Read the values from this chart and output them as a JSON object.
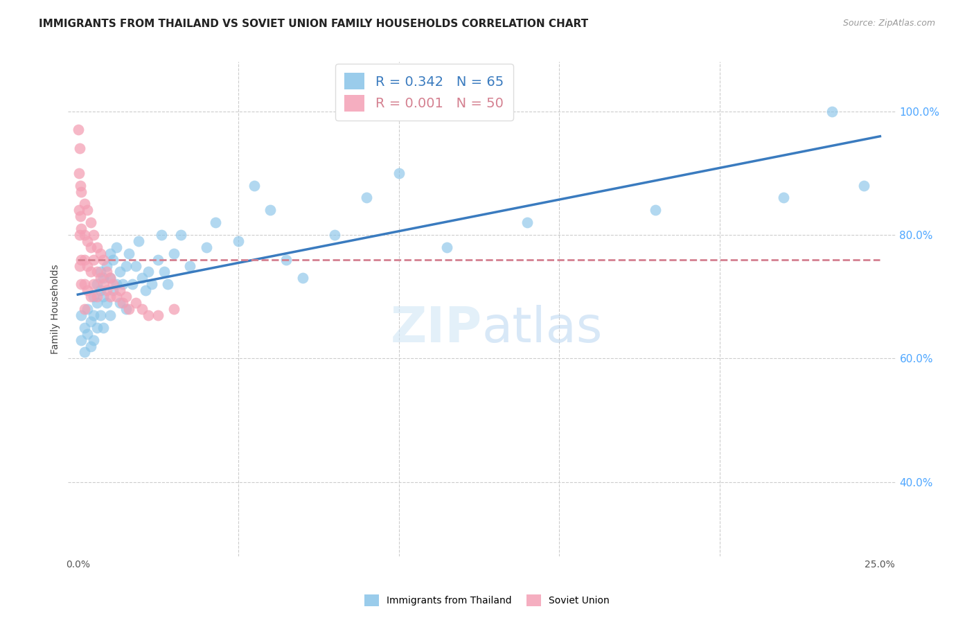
{
  "title": "IMMIGRANTS FROM THAILAND VS SOVIET UNION FAMILY HOUSEHOLDS CORRELATION CHART",
  "source": "Source: ZipAtlas.com",
  "ylabel": "Family Households",
  "bottom_legend": [
    "Immigrants from Thailand",
    "Soviet Union"
  ],
  "watermark": "ZIPatlas",
  "background_color": "#ffffff",
  "grid_color": "#cccccc",
  "blue_color": "#89c4e8",
  "pink_color": "#f4a0b5",
  "blue_line_color": "#3a7bbf",
  "pink_line_color": "#d48090",
  "right_axis_color": "#4da6ff",
  "legend_blue_label": "R = 0.342   N = 65",
  "legend_pink_label": "R = 0.001   N = 50",
  "thailand_x": [
    0.001,
    0.001,
    0.002,
    0.002,
    0.003,
    0.003,
    0.004,
    0.004,
    0.005,
    0.005,
    0.005,
    0.006,
    0.006,
    0.006,
    0.007,
    0.007,
    0.007,
    0.008,
    0.008,
    0.008,
    0.009,
    0.009,
    0.01,
    0.01,
    0.01,
    0.011,
    0.011,
    0.012,
    0.012,
    0.013,
    0.013,
    0.014,
    0.015,
    0.015,
    0.016,
    0.017,
    0.018,
    0.019,
    0.02,
    0.021,
    0.022,
    0.023,
    0.025,
    0.026,
    0.027,
    0.028,
    0.03,
    0.032,
    0.035,
    0.04,
    0.043,
    0.05,
    0.055,
    0.06,
    0.065,
    0.07,
    0.08,
    0.09,
    0.1,
    0.115,
    0.14,
    0.18,
    0.22,
    0.235,
    0.245
  ],
  "thailand_y": [
    0.67,
    0.63,
    0.65,
    0.61,
    0.68,
    0.64,
    0.66,
    0.62,
    0.7,
    0.67,
    0.63,
    0.72,
    0.69,
    0.65,
    0.74,
    0.71,
    0.67,
    0.73,
    0.7,
    0.65,
    0.75,
    0.69,
    0.77,
    0.73,
    0.67,
    0.76,
    0.71,
    0.78,
    0.72,
    0.74,
    0.69,
    0.72,
    0.75,
    0.68,
    0.77,
    0.72,
    0.75,
    0.79,
    0.73,
    0.71,
    0.74,
    0.72,
    0.76,
    0.8,
    0.74,
    0.72,
    0.77,
    0.8,
    0.75,
    0.78,
    0.82,
    0.79,
    0.88,
    0.84,
    0.76,
    0.73,
    0.8,
    0.86,
    0.9,
    0.78,
    0.82,
    0.84,
    0.86,
    1.0,
    0.88
  ],
  "soviet_x": [
    0.0002,
    0.0003,
    0.0004,
    0.0005,
    0.0005,
    0.0006,
    0.0007,
    0.0008,
    0.001,
    0.001,
    0.001,
    0.001,
    0.002,
    0.002,
    0.002,
    0.002,
    0.002,
    0.003,
    0.003,
    0.003,
    0.003,
    0.004,
    0.004,
    0.004,
    0.004,
    0.005,
    0.005,
    0.005,
    0.006,
    0.006,
    0.006,
    0.007,
    0.007,
    0.008,
    0.008,
    0.009,
    0.009,
    0.01,
    0.01,
    0.011,
    0.012,
    0.013,
    0.014,
    0.015,
    0.016,
    0.018,
    0.02,
    0.022,
    0.025,
    0.03
  ],
  "soviet_y": [
    0.97,
    0.9,
    0.84,
    0.94,
    0.8,
    0.75,
    0.88,
    0.83,
    0.87,
    0.81,
    0.76,
    0.72,
    0.85,
    0.8,
    0.76,
    0.72,
    0.68,
    0.84,
    0.79,
    0.75,
    0.71,
    0.82,
    0.78,
    0.74,
    0.7,
    0.8,
    0.76,
    0.72,
    0.78,
    0.74,
    0.7,
    0.77,
    0.73,
    0.76,
    0.72,
    0.74,
    0.71,
    0.73,
    0.7,
    0.72,
    0.7,
    0.71,
    0.69,
    0.7,
    0.68,
    0.69,
    0.68,
    0.67,
    0.67,
    0.68
  ],
  "xlim": [
    -0.003,
    0.255
  ],
  "ylim": [
    0.28,
    1.08
  ],
  "xmin": 0.0,
  "xmax": 0.25,
  "yticks": [
    0.4,
    0.6,
    0.8,
    1.0
  ]
}
